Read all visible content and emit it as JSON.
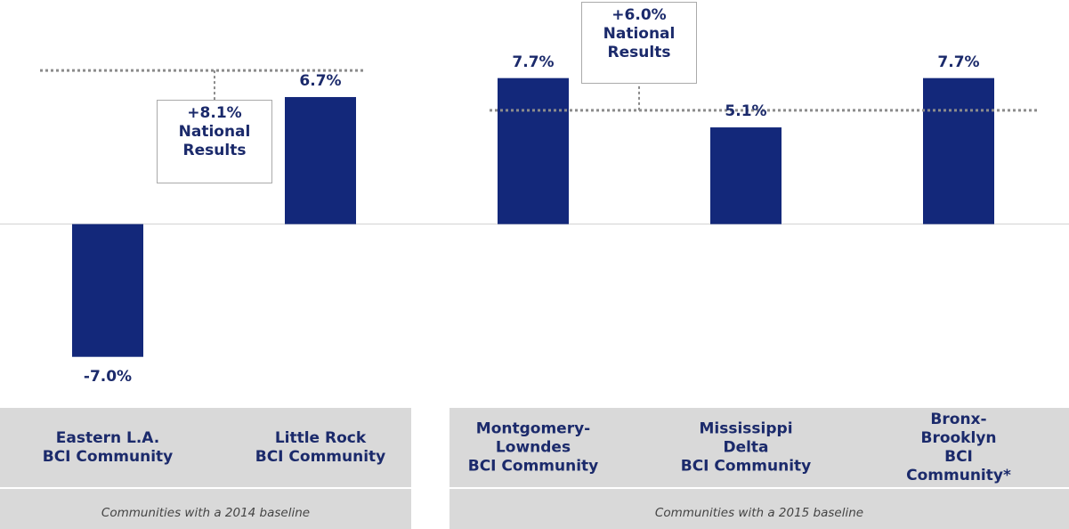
{
  "chart_data": {
    "type": "bar",
    "categories": [
      "Eastern L.A.\nBCI Community",
      "Little Rock\nBCI Community",
      "Montgomery-\nLowndes\nBCI Community",
      "Mississippi\nDelta\nBCI Community",
      "Bronx-\nBrooklyn\nBCI Community*"
    ],
    "values": [
      -7.0,
      6.7,
      7.7,
      5.1,
      7.7
    ],
    "value_labels": [
      "-7.0%",
      "6.7%",
      "7.7%",
      "5.1%",
      "7.7%"
    ],
    "color": "#13287a",
    "ylim": [
      -8,
      9
    ],
    "groups": [
      "Communities with a 2014 baseline",
      "Communities with a 2015 baseline"
    ],
    "reference_lines": [
      {
        "value": 8.1,
        "label": "+8.1%\nNational\nResults"
      },
      {
        "value": 6.0,
        "label": "+6.0%\nNational\nResults"
      }
    ]
  }
}
